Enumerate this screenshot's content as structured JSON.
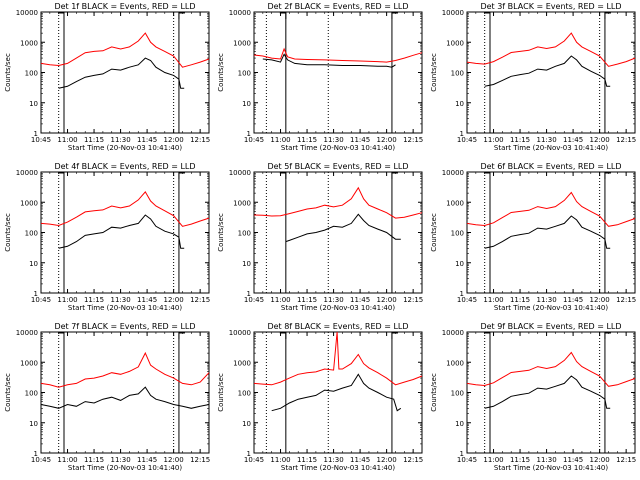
{
  "figure": {
    "x_tick_labels": [
      "10:45",
      "11:00",
      "11:15",
      "11:30",
      "11:45",
      "12:00",
      "12:15"
    ],
    "y_tick_labels": [
      "1",
      "10",
      "100",
      "1000",
      "10000"
    ],
    "ylabel": "Counts/sec",
    "xlabel": "Start Time (20-Nov-03 10:41:40)",
    "colors": {
      "events": "#000000",
      "lld": "#ff0000",
      "frame": "#000000"
    }
  },
  "chart_data": [
    {
      "type": "line",
      "title": "Det 1f BLACK = Events, RED = LLD",
      "x_unit": "HH:MM",
      "x_range": [
        "10:45",
        "12:20"
      ],
      "y_scale": "log",
      "ylim": [
        1,
        10000
      ],
      "vlines_dotted": [
        "10:55",
        "12:00"
      ],
      "vlines_solid": [
        "10:58",
        "12:03"
      ],
      "series": [
        {
          "color": "#000000",
          "x": [
            "10:55",
            "11:00",
            "11:05",
            "11:10",
            "11:15",
            "11:20",
            "11:25",
            "11:30",
            "11:35",
            "11:40",
            "11:44",
            "11:47",
            "11:50",
            "11:55",
            "12:00",
            "12:03",
            "12:04",
            "12:06"
          ],
          "y": [
            30,
            35,
            50,
            70,
            80,
            90,
            130,
            120,
            150,
            180,
            300,
            250,
            150,
            100,
            80,
            60,
            30,
            30
          ]
        },
        {
          "color": "#ff0000",
          "x": [
            "10:45",
            "10:50",
            "10:55",
            "11:00",
            "11:05",
            "11:10",
            "11:15",
            "11:20",
            "11:25",
            "11:30",
            "11:35",
            "11:40",
            "11:44",
            "11:47",
            "11:50",
            "11:55",
            "12:00",
            "12:05",
            "12:10",
            "12:15",
            "12:20"
          ],
          "y": [
            200,
            180,
            170,
            200,
            300,
            450,
            500,
            520,
            700,
            600,
            700,
            1100,
            2000,
            1000,
            700,
            500,
            350,
            150,
            180,
            220,
            280
          ]
        }
      ]
    },
    {
      "type": "line",
      "title": "Det 2f BLACK = Events, RED = LLD",
      "x_unit": "HH:MM",
      "x_range": [
        "10:45",
        "12:20"
      ],
      "y_scale": "log",
      "ylim": [
        1,
        10000
      ],
      "vlines_dotted": [
        "10:52",
        "11:27"
      ],
      "vlines_solid": [
        "11:03",
        "12:03"
      ],
      "series": [
        {
          "color": "#000000",
          "x": [
            "10:50",
            "10:55",
            "11:00",
            "11:02",
            "11:04",
            "11:08",
            "11:15",
            "11:25",
            "11:35",
            "11:45",
            "11:55",
            "12:00",
            "12:03",
            "12:05"
          ],
          "y": [
            280,
            260,
            220,
            400,
            260,
            200,
            180,
            180,
            170,
            170,
            160,
            160,
            150,
            180
          ]
        },
        {
          "color": "#ff0000",
          "x": [
            "10:45",
            "10:50",
            "10:55",
            "11:00",
            "11:02",
            "11:04",
            "11:08",
            "11:15",
            "11:25",
            "11:35",
            "11:45",
            "11:55",
            "12:00",
            "12:05",
            "12:10",
            "12:15",
            "12:20"
          ],
          "y": [
            380,
            350,
            300,
            280,
            600,
            330,
            280,
            270,
            260,
            250,
            240,
            230,
            220,
            250,
            300,
            370,
            450
          ]
        }
      ]
    },
    {
      "type": "line",
      "title": "Det 3f BLACK = Events, RED = LLD",
      "x_unit": "HH:MM",
      "x_range": [
        "10:45",
        "12:20"
      ],
      "y_scale": "log",
      "ylim": [
        1,
        10000
      ],
      "vlines_dotted": [
        "10:55",
        "12:00"
      ],
      "vlines_solid": [
        "10:58",
        "12:03"
      ],
      "series": [
        {
          "color": "#000000",
          "x": [
            "10:55",
            "11:00",
            "11:05",
            "11:10",
            "11:15",
            "11:20",
            "11:25",
            "11:30",
            "11:35",
            "11:40",
            "11:44",
            "11:47",
            "11:50",
            "11:55",
            "12:00",
            "12:03",
            "12:04",
            "12:06"
          ],
          "y": [
            35,
            40,
            55,
            75,
            85,
            95,
            130,
            120,
            160,
            200,
            350,
            260,
            160,
            110,
            80,
            60,
            35,
            35
          ]
        },
        {
          "color": "#ff0000",
          "x": [
            "10:45",
            "10:50",
            "10:55",
            "11:00",
            "11:05",
            "11:10",
            "11:15",
            "11:20",
            "11:25",
            "11:30",
            "11:35",
            "11:40",
            "11:44",
            "11:47",
            "11:50",
            "11:55",
            "12:00",
            "12:05",
            "12:10",
            "12:15",
            "12:20"
          ],
          "y": [
            220,
            200,
            190,
            230,
            320,
            460,
            500,
            540,
            700,
            620,
            700,
            1100,
            2000,
            1000,
            700,
            500,
            350,
            160,
            190,
            230,
            300
          ]
        }
      ]
    },
    {
      "type": "line",
      "title": "Det 4f BLACK = Events, RED = LLD",
      "x_unit": "HH:MM",
      "x_range": [
        "10:45",
        "12:20"
      ],
      "y_scale": "log",
      "ylim": [
        1,
        10000
      ],
      "vlines_dotted": [
        "10:55",
        "12:00"
      ],
      "vlines_solid": [
        "10:58",
        "12:03"
      ],
      "series": [
        {
          "color": "#000000",
          "x": [
            "10:55",
            "11:00",
            "11:05",
            "11:10",
            "11:15",
            "11:20",
            "11:25",
            "11:30",
            "11:35",
            "11:40",
            "11:44",
            "11:47",
            "11:50",
            "11:55",
            "12:00",
            "12:03",
            "12:04",
            "12:06"
          ],
          "y": [
            30,
            35,
            50,
            80,
            90,
            100,
            150,
            140,
            170,
            200,
            380,
            280,
            160,
            110,
            90,
            70,
            30,
            30
          ]
        },
        {
          "color": "#ff0000",
          "x": [
            "10:45",
            "10:50",
            "10:55",
            "11:00",
            "11:05",
            "11:10",
            "11:15",
            "11:20",
            "11:25",
            "11:30",
            "11:35",
            "11:40",
            "11:44",
            "11:47",
            "11:50",
            "11:55",
            "12:00",
            "12:05",
            "12:10",
            "12:15",
            "12:20"
          ],
          "y": [
            200,
            190,
            170,
            220,
            320,
            480,
            520,
            560,
            750,
            650,
            750,
            1200,
            2200,
            1100,
            750,
            520,
            360,
            160,
            190,
            240,
            300
          ]
        }
      ]
    },
    {
      "type": "line",
      "title": "Det 5f BLACK = Events, RED = LLD",
      "x_unit": "HH:MM",
      "x_range": [
        "10:45",
        "12:20"
      ],
      "y_scale": "log",
      "ylim": [
        1,
        10000
      ],
      "vlines_dotted": [
        "10:52",
        "11:27"
      ],
      "vlines_solid": [
        "11:03",
        "12:03"
      ],
      "series": [
        {
          "color": "#000000",
          "x": [
            "11:03",
            "11:05",
            "11:10",
            "11:15",
            "11:20",
            "11:25",
            "11:30",
            "11:35",
            "11:40",
            "11:44",
            "11:47",
            "11:50",
            "11:55",
            "12:00",
            "12:05",
            "12:08"
          ],
          "y": [
            50,
            55,
            70,
            90,
            100,
            120,
            160,
            150,
            200,
            400,
            250,
            170,
            130,
            100,
            60,
            60
          ]
        },
        {
          "color": "#ff0000",
          "x": [
            "10:45",
            "10:50",
            "10:55",
            "11:00",
            "11:05",
            "11:10",
            "11:15",
            "11:20",
            "11:25",
            "11:30",
            "11:35",
            "11:40",
            "11:44",
            "11:47",
            "11:50",
            "11:55",
            "12:00",
            "12:05",
            "12:10",
            "12:15",
            "12:20"
          ],
          "y": [
            380,
            370,
            350,
            360,
            420,
            500,
            600,
            650,
            800,
            700,
            800,
            1300,
            3000,
            1300,
            800,
            600,
            450,
            300,
            320,
            380,
            450
          ]
        }
      ]
    },
    {
      "type": "line",
      "title": "Det 6f BLACK = Events, RED = LLD",
      "x_unit": "HH:MM",
      "x_range": [
        "10:45",
        "12:20"
      ],
      "y_scale": "log",
      "ylim": [
        1,
        10000
      ],
      "vlines_dotted": [
        "10:55",
        "12:00"
      ],
      "vlines_solid": [
        "10:58",
        "12:03"
      ],
      "series": [
        {
          "color": "#000000",
          "x": [
            "10:55",
            "11:00",
            "11:05",
            "11:10",
            "11:15",
            "11:20",
            "11:25",
            "11:30",
            "11:35",
            "11:40",
            "11:44",
            "11:47",
            "11:50",
            "11:55",
            "12:00",
            "12:03",
            "12:04",
            "12:06"
          ],
          "y": [
            30,
            35,
            50,
            75,
            85,
            95,
            140,
            130,
            160,
            200,
            350,
            260,
            150,
            110,
            80,
            60,
            30,
            30
          ]
        },
        {
          "color": "#ff0000",
          "x": [
            "10:45",
            "10:50",
            "10:55",
            "11:00",
            "11:05",
            "11:10",
            "11:15",
            "11:20",
            "11:25",
            "11:30",
            "11:35",
            "11:40",
            "11:44",
            "11:47",
            "11:50",
            "11:55",
            "12:00",
            "12:05",
            "12:10",
            "12:15",
            "12:20"
          ],
          "y": [
            200,
            180,
            170,
            210,
            310,
            460,
            500,
            540,
            720,
            620,
            720,
            1150,
            2100,
            1050,
            720,
            500,
            350,
            160,
            180,
            230,
            290
          ]
        }
      ]
    },
    {
      "type": "line",
      "title": "Det 7f BLACK = Events, RED = LLD",
      "x_unit": "HH:MM",
      "x_range": [
        "10:45",
        "12:20"
      ],
      "y_scale": "log",
      "ylim": [
        1,
        10000
      ],
      "vlines_dotted": [
        "10:55",
        "12:00"
      ],
      "vlines_solid": [
        "10:58",
        "12:03"
      ],
      "series": [
        {
          "color": "#000000",
          "x": [
            "10:45",
            "10:50",
            "10:55",
            "11:00",
            "11:05",
            "11:10",
            "11:15",
            "11:20",
            "11:25",
            "11:30",
            "11:35",
            "11:40",
            "11:44",
            "11:47",
            "11:50",
            "11:55",
            "12:00",
            "12:05",
            "12:10",
            "12:15",
            "12:20"
          ],
          "y": [
            40,
            35,
            30,
            40,
            35,
            50,
            45,
            60,
            70,
            55,
            80,
            90,
            150,
            80,
            60,
            50,
            40,
            35,
            30,
            35,
            40
          ]
        },
        {
          "color": "#ff0000",
          "x": [
            "10:45",
            "10:50",
            "10:55",
            "11:00",
            "11:05",
            "11:10",
            "11:15",
            "11:20",
            "11:25",
            "11:30",
            "11:35",
            "11:40",
            "11:44",
            "11:47",
            "11:50",
            "11:55",
            "12:00",
            "12:05",
            "12:10",
            "12:15",
            "12:20"
          ],
          "y": [
            200,
            180,
            150,
            180,
            200,
            280,
            300,
            350,
            450,
            400,
            500,
            700,
            2000,
            800,
            600,
            400,
            300,
            200,
            180,
            220,
            450
          ]
        }
      ]
    },
    {
      "type": "line",
      "title": "Det 8f BLACK = Events, RED = LLD",
      "x_unit": "HH:MM",
      "x_range": [
        "10:45",
        "12:20"
      ],
      "y_scale": "log",
      "ylim": [
        1,
        10000
      ],
      "vlines_dotted": [
        "10:52",
        "11:27"
      ],
      "vlines_solid": [
        "11:03",
        "12:03"
      ],
      "series": [
        {
          "color": "#000000",
          "x": [
            "10:55",
            "11:00",
            "11:05",
            "11:10",
            "11:15",
            "11:20",
            "11:25",
            "11:30",
            "11:35",
            "11:40",
            "11:44",
            "11:47",
            "11:50",
            "11:55",
            "12:00",
            "12:04",
            "12:06",
            "12:08"
          ],
          "y": [
            25,
            30,
            45,
            60,
            70,
            80,
            120,
            110,
            140,
            170,
            400,
            200,
            140,
            100,
            70,
            60,
            25,
            30
          ]
        },
        {
          "color": "#ff0000",
          "x": [
            "10:45",
            "10:50",
            "10:55",
            "11:00",
            "11:05",
            "11:10",
            "11:15",
            "11:20",
            "11:25",
            "11:30",
            "11:32",
            "11:33",
            "11:35",
            "11:40",
            "11:44",
            "11:47",
            "11:50",
            "11:55",
            "12:00",
            "12:05",
            "12:10",
            "12:15",
            "12:20"
          ],
          "y": [
            200,
            190,
            180,
            220,
            300,
            400,
            450,
            480,
            600,
            550,
            10000,
            600,
            600,
            900,
            1800,
            900,
            650,
            450,
            300,
            180,
            220,
            270,
            350
          ]
        }
      ]
    },
    {
      "type": "line",
      "title": "Det 9f BLACK = Events, RED = LLD",
      "x_unit": "HH:MM",
      "x_range": [
        "10:45",
        "12:20"
      ],
      "y_scale": "log",
      "ylim": [
        1,
        10000
      ],
      "vlines_dotted": [
        "10:55",
        "12:00"
      ],
      "vlines_solid": [
        "10:58",
        "12:03"
      ],
      "series": [
        {
          "color": "#000000",
          "x": [
            "10:55",
            "11:00",
            "11:05",
            "11:10",
            "11:15",
            "11:20",
            "11:25",
            "11:30",
            "11:35",
            "11:40",
            "11:44",
            "11:47",
            "11:50",
            "11:55",
            "12:00",
            "12:03",
            "12:04",
            "12:06"
          ],
          "y": [
            30,
            35,
            50,
            75,
            85,
            95,
            140,
            130,
            160,
            200,
            350,
            260,
            150,
            110,
            80,
            60,
            30,
            30
          ]
        },
        {
          "color": "#ff0000",
          "x": [
            "10:45",
            "10:50",
            "10:55",
            "11:00",
            "11:05",
            "11:10",
            "11:15",
            "11:20",
            "11:25",
            "11:30",
            "11:35",
            "11:40",
            "11:44",
            "11:47",
            "11:50",
            "11:55",
            "12:00",
            "12:05",
            "12:10",
            "12:15",
            "12:20"
          ],
          "y": [
            200,
            180,
            170,
            210,
            310,
            460,
            500,
            540,
            720,
            620,
            720,
            1150,
            2100,
            1050,
            720,
            500,
            350,
            160,
            180,
            230,
            290
          ]
        }
      ]
    }
  ]
}
